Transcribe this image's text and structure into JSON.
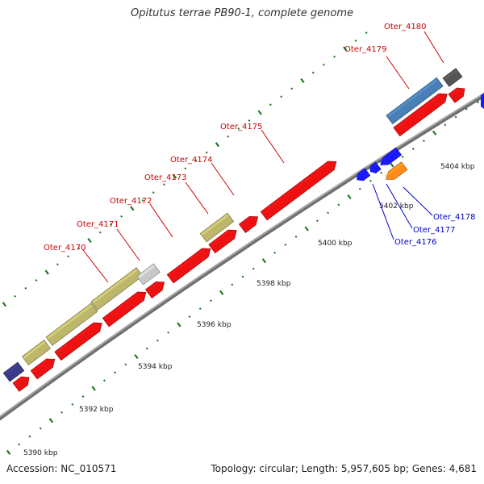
{
  "title": "Opitutus terrae PB90-1, complete genome",
  "footer": {
    "accession": "Accession: NC_010571",
    "summary": "Topology: circular; Length: 5,957,605 bp; Genes: 4,681"
  },
  "colors": {
    "backbone": "#8c8c8c",
    "tick": "#1f7a1f",
    "forward_label": "#cc0000",
    "reverse_label": "#0000cc",
    "cds_red": "#ee1111",
    "olive": "#bdb76b",
    "steel_blue": "#4a7fb5",
    "dark_gray": "#555555",
    "light_gray": "#c8c8c8",
    "navy": "#3a3a8a",
    "blue": "#1a1aff",
    "orange": "#ff8c1a"
  },
  "scale": {
    "labels": [
      "5390 kbp",
      "5392 kbp",
      "5394 kbp",
      "5396 kbp",
      "5398 kbp",
      "5400 kbp",
      "5402 kbp",
      "5404 kbp"
    ]
  },
  "gene_labels_forward": [
    "Oter_4170",
    "Oter_4171",
    "Oter_4172",
    "Oter_4173",
    "Oter_4174",
    "Oter_4175",
    "Oter_4179",
    "Oter_4180"
  ],
  "gene_labels_reverse": [
    "Oter_4176",
    "Oter_4177",
    "Oter_4178"
  ],
  "features": [
    {
      "track": "outer",
      "color": "navy"
    },
    {
      "track": "outer",
      "color": "olive"
    },
    {
      "track": "outer",
      "color": "olive"
    },
    {
      "track": "outer",
      "color": "olive"
    },
    {
      "track": "outer",
      "color": "light_gray"
    },
    {
      "track": "outer",
      "color": "olive"
    },
    {
      "track": "outer",
      "color": "steel_blue"
    },
    {
      "track": "outer",
      "color": "dark_gray"
    },
    {
      "track": "forward",
      "color": "cds_red"
    },
    {
      "track": "forward",
      "color": "cds_red"
    },
    {
      "track": "forward",
      "color": "cds_red"
    },
    {
      "track": "forward",
      "color": "cds_red"
    },
    {
      "track": "forward",
      "color": "cds_red"
    },
    {
      "track": "forward",
      "color": "cds_red"
    },
    {
      "track": "forward",
      "color": "cds_red"
    },
    {
      "track": "forward",
      "color": "cds_red"
    },
    {
      "track": "forward",
      "color": "cds_red"
    },
    {
      "track": "forward",
      "color": "cds_red"
    },
    {
      "track": "forward",
      "color": "cds_red"
    },
    {
      "track": "reverse",
      "color": "blue"
    },
    {
      "track": "reverse",
      "color": "blue"
    },
    {
      "track": "reverse",
      "color": "blue"
    },
    {
      "track": "reverse",
      "color": "orange"
    }
  ]
}
